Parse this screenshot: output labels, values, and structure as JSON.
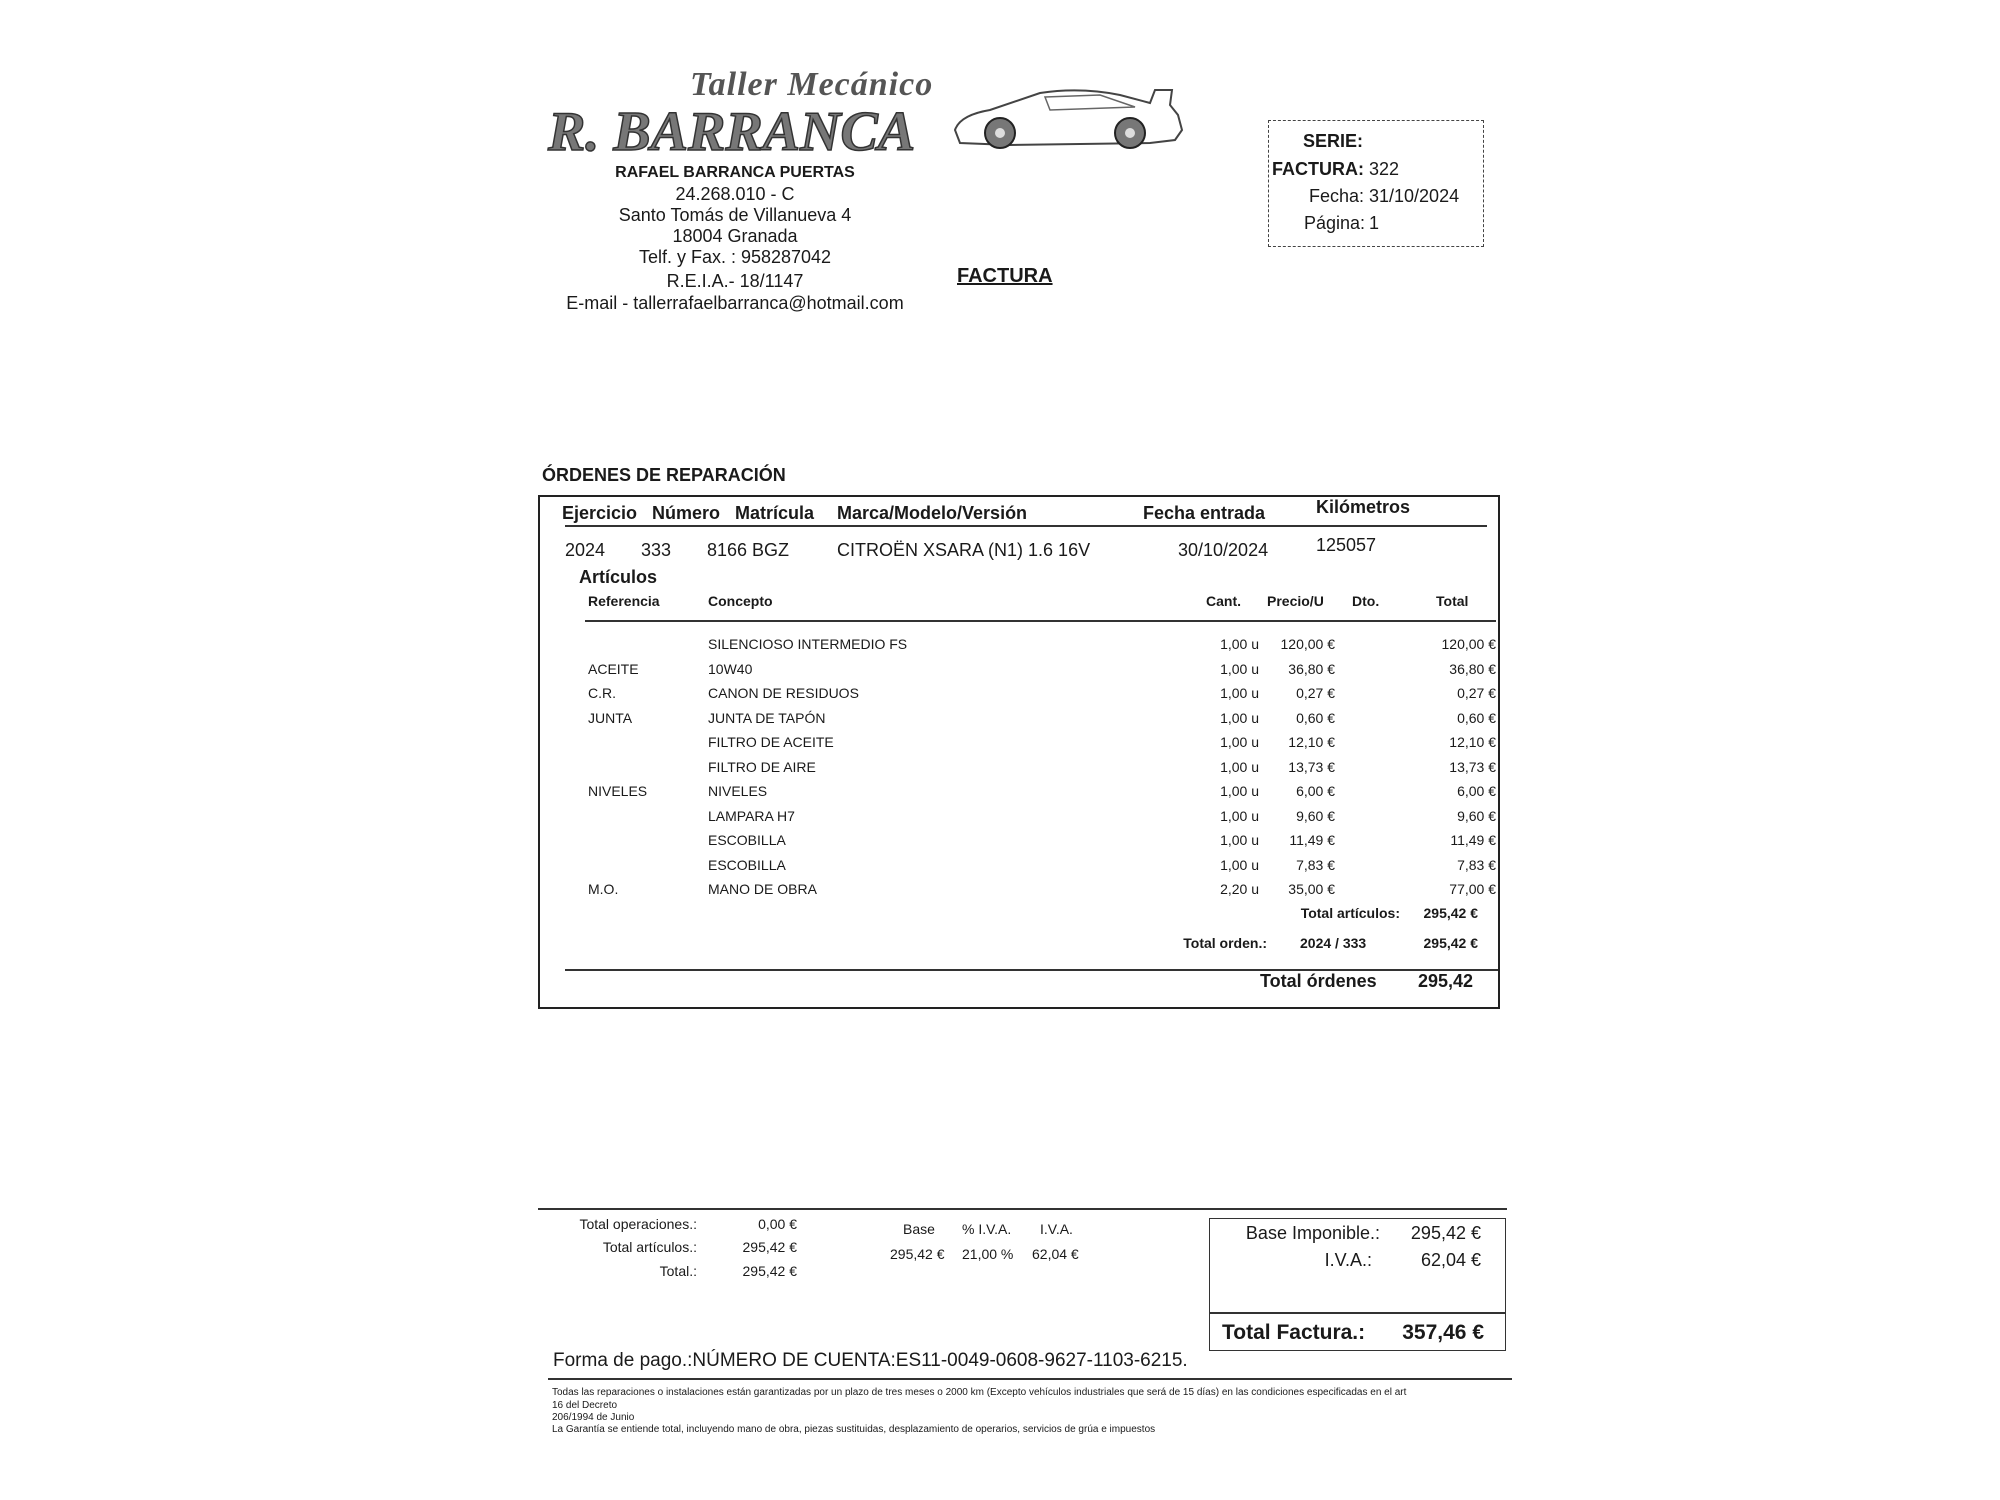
{
  "header": {
    "logo_line1": "Taller Mecánico",
    "logo_line2": "R. BARRANCA",
    "name": "RAFAEL BARRANCA PUERTAS",
    "nif": "24.268.010 - C",
    "address": "Santo Tomás de Villanueva 4",
    "city": "18004 Granada",
    "phone": "Telf. y Fax. : 958287042",
    "reia": "R.E.I.A.- 18/1147",
    "email": "E-mail - tallerrafaelbarranca@hotmail.com",
    "doc_title": "FACTURA"
  },
  "serie_box": {
    "serie_label": "SERIE:",
    "factura_label": "FACTURA:",
    "factura_value": "322",
    "fecha_label": "Fecha:",
    "fecha_value": "31/10/2024",
    "pagina_label": "Página:",
    "pagina_value": "1"
  },
  "orders": {
    "section_title": "ÓRDENES DE REPARACIÓN",
    "columns": [
      "Ejercicio",
      "Número",
      "Matrícula",
      "Marca/Modelo/Versión",
      "Fecha entrada",
      "Kilómetros"
    ],
    "order": [
      "2024",
      "333",
      "8166 BGZ",
      "CITROËN XSARA (N1) 1.6 16V",
      "30/10/2024",
      "125057"
    ],
    "articles_title": "Artículos",
    "article_columns": [
      "Referencia",
      "Concepto",
      "Cant.",
      "Precio/U",
      "Dto.",
      "Total"
    ],
    "items": [
      {
        "ref": "",
        "concept": "SILENCIOSO INTERMEDIO FS",
        "qty": "1,00 u",
        "price": "120,00 €",
        "total": "120,00 €"
      },
      {
        "ref": "ACEITE",
        "concept": "10W40",
        "qty": "1,00 u",
        "price": "36,80 €",
        "total": "36,80 €"
      },
      {
        "ref": "C.R.",
        "concept": "CANON DE RESIDUOS",
        "qty": "1,00 u",
        "price": "0,27 €",
        "total": "0,27 €"
      },
      {
        "ref": "JUNTA",
        "concept": "JUNTA DE TAPÓN",
        "qty": "1,00 u",
        "price": "0,60 €",
        "total": "0,60 €"
      },
      {
        "ref": "",
        "concept": "FILTRO DE ACEITE",
        "qty": "1,00 u",
        "price": "12,10 €",
        "total": "12,10 €"
      },
      {
        "ref": "",
        "concept": "FILTRO DE AIRE",
        "qty": "1,00 u",
        "price": "13,73 €",
        "total": "13,73 €"
      },
      {
        "ref": "NIVELES",
        "concept": "NIVELES",
        "qty": "1,00 u",
        "price": "6,00 €",
        "total": "6,00 €"
      },
      {
        "ref": "",
        "concept": "LAMPARA H7",
        "qty": "1,00 u",
        "price": "9,60 €",
        "total": "9,60 €"
      },
      {
        "ref": "",
        "concept": "ESCOBILLA",
        "qty": "1,00 u",
        "price": "11,49 €",
        "total": "11,49 €"
      },
      {
        "ref": "",
        "concept": "ESCOBILLA",
        "qty": "1,00 u",
        "price": "7,83 €",
        "total": "7,83 €"
      },
      {
        "ref": "M.O.",
        "concept": "MANO DE OBRA",
        "qty": "2,20 u",
        "price": "35,00 €",
        "total": "77,00 €"
      }
    ],
    "total_articulos_label": "Total artículos:",
    "total_articulos_value": "295,42 €",
    "total_orden_label": "Total orden.:",
    "total_orden_ref": "2024 / 333",
    "total_orden_value": "295,42 €",
    "total_ordenes_label": "Total órdenes",
    "total_ordenes_value": "295,42"
  },
  "summary": {
    "total_operaciones_label": "Total operaciones.:",
    "total_operaciones_value": "0,00 €",
    "total_articulos_label": "Total artículos.:",
    "total_articulos_value": "295,42 €",
    "total_label": "Total.:",
    "total_value": "295,42 €",
    "tax_headers": [
      "Base",
      "% I.V.A.",
      "I.V.A."
    ],
    "tax_values": [
      "295,42 €",
      "21,00 %",
      "62,04 €"
    ],
    "base_imponible_label": "Base Imponible.:",
    "base_imponible_value": "295,42 €",
    "iva_label": "I.V.A.:",
    "iva_value": "62,04 €",
    "total_factura_label": "Total Factura.:",
    "total_factura_value": "357,46 €"
  },
  "payment": "Forma de pago.:NÚMERO DE CUENTA:ES11-0049-0608-9627-1103-6215.",
  "legal": [
    "Todas las reparaciones o instalaciones están garantizadas por un plazo de tres meses o 2000 km (Excepto vehículos industriales que será de 15 días) en las condiciones especificadas en el art",
    "16 del Decreto",
    "206/1994 de Junio",
    "La Garantía se entiende total, incluyendo mano de obra, piezas sustituidas, desplazamiento de operarios, servicios de grúa e impuestos"
  ]
}
